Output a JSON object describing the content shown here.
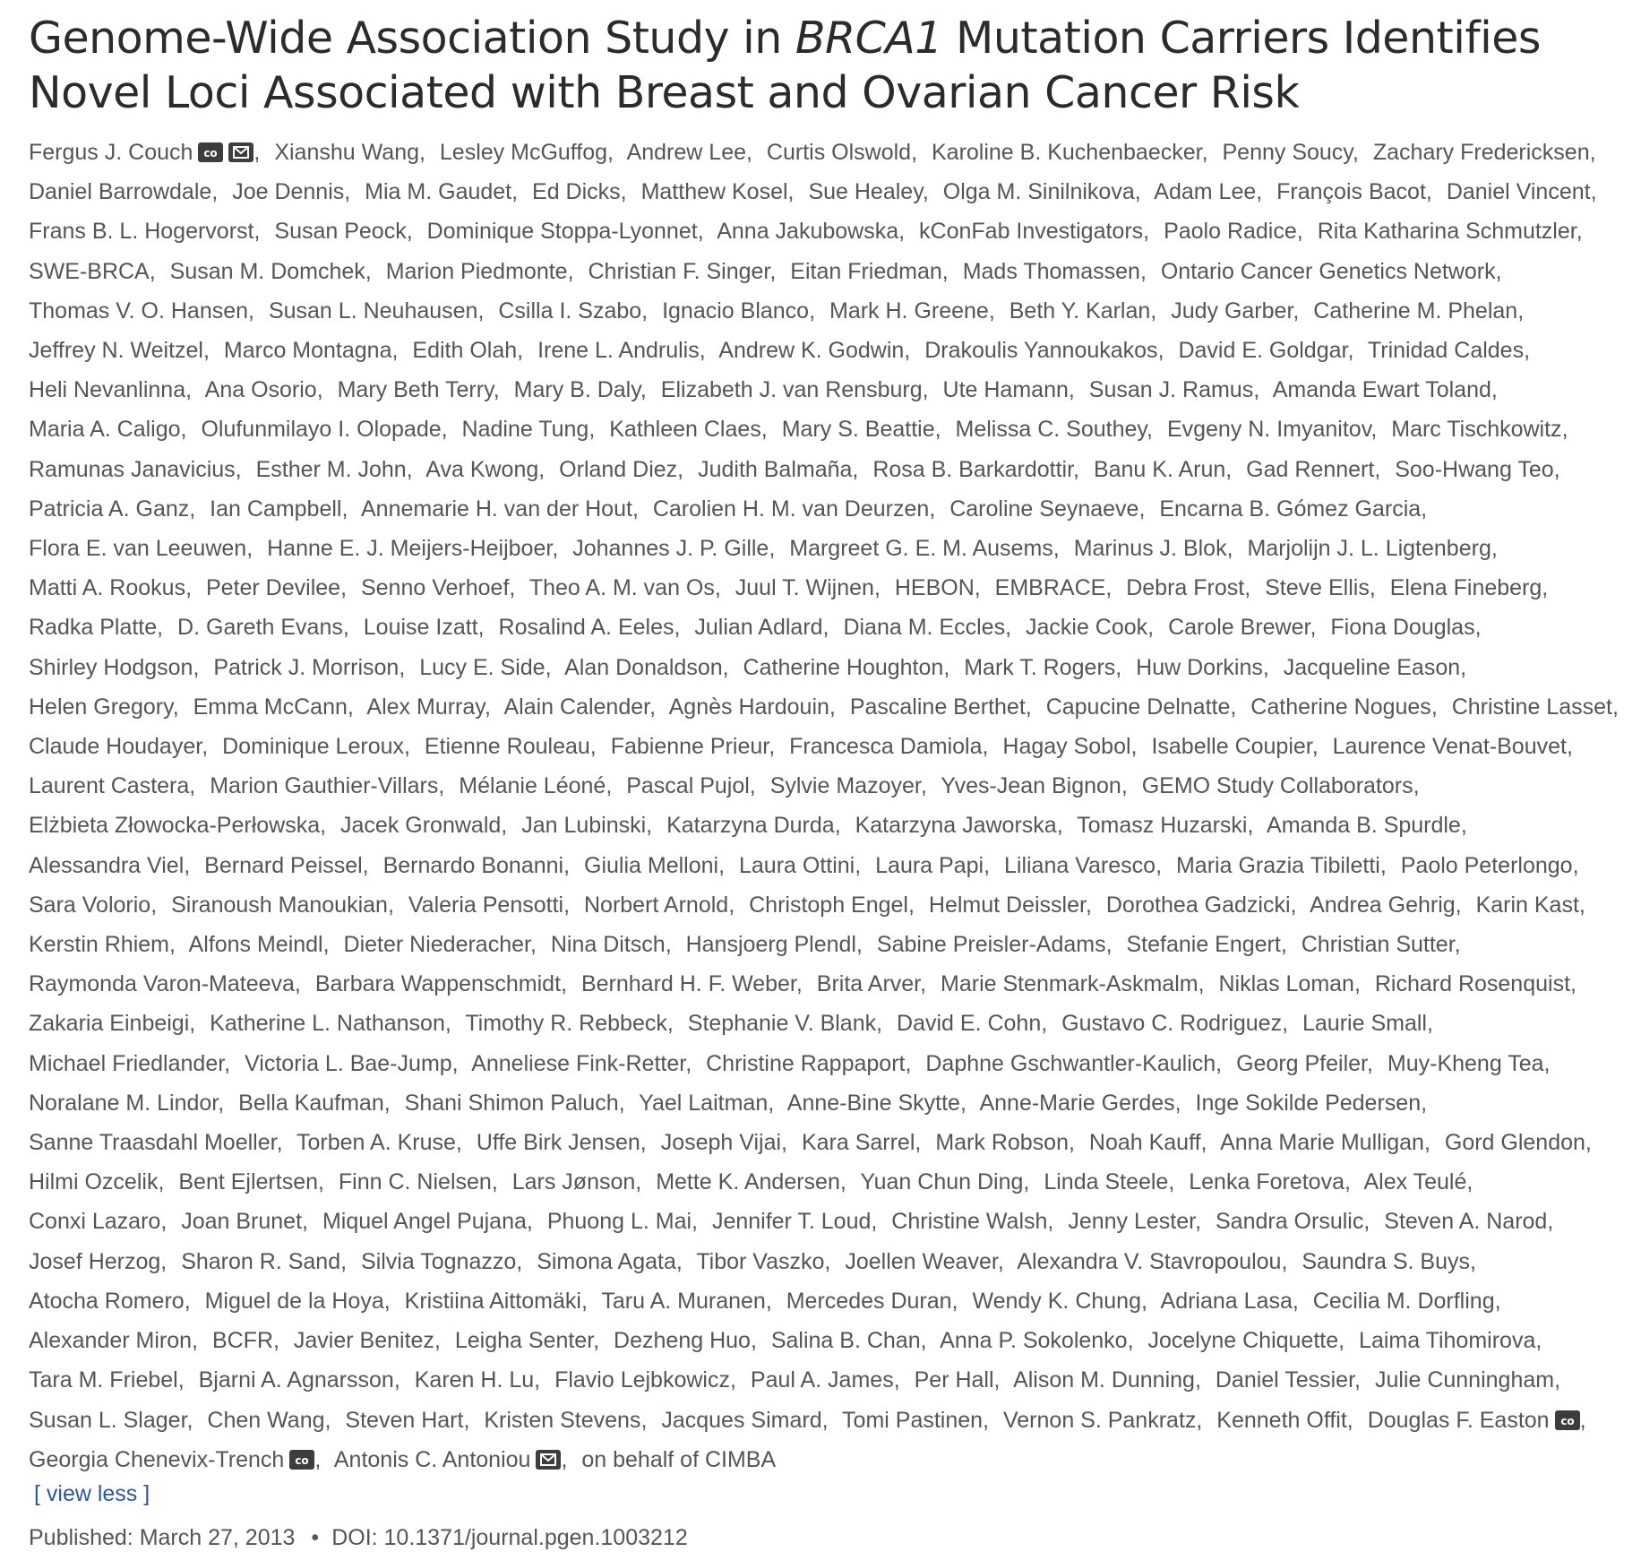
{
  "article": {
    "title_part1": "Genome-Wide Association Study in ",
    "title_italic": "BRCA1",
    "title_part2": " Mutation Carriers Identifies Novel Loci Associated with Breast and Ovarian Cancer Risk"
  },
  "authors": [
    {
      "name": "Fergus J. Couch",
      "icons": [
        "contributed-equally-icon",
        "email-icon"
      ]
    },
    {
      "name": "Xianshu Wang"
    },
    {
      "name": "Lesley McGuffog"
    },
    {
      "name": "Andrew Lee"
    },
    {
      "name": "Curtis Olswold"
    },
    {
      "name": "Karoline B. Kuchenbaecker"
    },
    {
      "name": "Penny Soucy"
    },
    {
      "name": "Zachary Fredericksen"
    },
    {
      "name": "Daniel Barrowdale"
    },
    {
      "name": "Joe Dennis"
    },
    {
      "name": "Mia M. Gaudet"
    },
    {
      "name": "Ed Dicks"
    },
    {
      "name": "Matthew Kosel"
    },
    {
      "name": "Sue Healey"
    },
    {
      "name": "Olga M. Sinilnikova"
    },
    {
      "name": "Adam Lee"
    },
    {
      "name": "François Bacot"
    },
    {
      "name": "Daniel Vincent"
    },
    {
      "name": "Frans B. L. Hogervorst"
    },
    {
      "name": "Susan Peock"
    },
    {
      "name": "Dominique Stoppa-Lyonnet"
    },
    {
      "name": "Anna Jakubowska"
    },
    {
      "name": "kConFab Investigators"
    },
    {
      "name": "Paolo Radice"
    },
    {
      "name": "Rita Katharina Schmutzler"
    },
    {
      "name": "SWE-BRCA"
    },
    {
      "name": "Susan M. Domchek"
    },
    {
      "name": "Marion Piedmonte"
    },
    {
      "name": "Christian F. Singer"
    },
    {
      "name": "Eitan Friedman"
    },
    {
      "name": "Mads Thomassen"
    },
    {
      "name": "Ontario Cancer Genetics Network"
    },
    {
      "name": "Thomas V. O. Hansen"
    },
    {
      "name": "Susan L. Neuhausen"
    },
    {
      "name": "Csilla I. Szabo"
    },
    {
      "name": "Ignacio Blanco"
    },
    {
      "name": "Mark H. Greene"
    },
    {
      "name": "Beth Y. Karlan"
    },
    {
      "name": "Judy Garber"
    },
    {
      "name": "Catherine M. Phelan"
    },
    {
      "name": "Jeffrey N. Weitzel"
    },
    {
      "name": "Marco Montagna"
    },
    {
      "name": "Edith Olah"
    },
    {
      "name": "Irene L. Andrulis"
    },
    {
      "name": "Andrew K. Godwin"
    },
    {
      "name": "Drakoulis Yannoukakos"
    },
    {
      "name": "David E. Goldgar"
    },
    {
      "name": "Trinidad Caldes"
    },
    {
      "name": "Heli Nevanlinna"
    },
    {
      "name": "Ana Osorio"
    },
    {
      "name": "Mary Beth Terry"
    },
    {
      "name": "Mary B. Daly"
    },
    {
      "name": "Elizabeth J. van Rensburg"
    },
    {
      "name": "Ute Hamann"
    },
    {
      "name": "Susan J. Ramus"
    },
    {
      "name": "Amanda Ewart Toland"
    },
    {
      "name": "Maria A. Caligo"
    },
    {
      "name": "Olufunmilayo I. Olopade"
    },
    {
      "name": "Nadine Tung"
    },
    {
      "name": "Kathleen Claes"
    },
    {
      "name": "Mary S. Beattie"
    },
    {
      "name": "Melissa C. Southey"
    },
    {
      "name": "Evgeny N. Imyanitov"
    },
    {
      "name": "Marc Tischkowitz"
    },
    {
      "name": "Ramunas Janavicius"
    },
    {
      "name": "Esther M. John"
    },
    {
      "name": "Ava Kwong"
    },
    {
      "name": "Orland Diez"
    },
    {
      "name": "Judith Balmaña"
    },
    {
      "name": "Rosa B. Barkardottir"
    },
    {
      "name": "Banu K. Arun"
    },
    {
      "name": "Gad Rennert"
    },
    {
      "name": "Soo-Hwang Teo"
    },
    {
      "name": "Patricia A. Ganz"
    },
    {
      "name": "Ian Campbell"
    },
    {
      "name": "Annemarie H. van der Hout"
    },
    {
      "name": "Carolien H. M. van Deurzen"
    },
    {
      "name": "Caroline Seynaeve"
    },
    {
      "name": "Encarna B. Gómez Garcia"
    },
    {
      "name": "Flora E. van Leeuwen"
    },
    {
      "name": "Hanne E. J. Meijers-Heijboer"
    },
    {
      "name": "Johannes J. P. Gille"
    },
    {
      "name": "Margreet G. E. M. Ausems"
    },
    {
      "name": "Marinus J. Blok"
    },
    {
      "name": "Marjolijn J. L. Ligtenberg"
    },
    {
      "name": "Matti A. Rookus"
    },
    {
      "name": "Peter Devilee"
    },
    {
      "name": "Senno Verhoef"
    },
    {
      "name": "Theo A. M. van Os"
    },
    {
      "name": "Juul T. Wijnen"
    },
    {
      "name": "HEBON"
    },
    {
      "name": "EMBRACE"
    },
    {
      "name": "Debra Frost"
    },
    {
      "name": "Steve Ellis"
    },
    {
      "name": "Elena Fineberg"
    },
    {
      "name": "Radka Platte"
    },
    {
      "name": "D. Gareth Evans"
    },
    {
      "name": "Louise Izatt"
    },
    {
      "name": "Rosalind A. Eeles"
    },
    {
      "name": "Julian Adlard"
    },
    {
      "name": "Diana M. Eccles"
    },
    {
      "name": "Jackie Cook"
    },
    {
      "name": "Carole Brewer"
    },
    {
      "name": "Fiona Douglas"
    },
    {
      "name": "Shirley Hodgson"
    },
    {
      "name": "Patrick J. Morrison"
    },
    {
      "name": "Lucy E. Side"
    },
    {
      "name": "Alan Donaldson"
    },
    {
      "name": "Catherine Houghton"
    },
    {
      "name": "Mark T. Rogers"
    },
    {
      "name": "Huw Dorkins"
    },
    {
      "name": "Jacqueline Eason"
    },
    {
      "name": "Helen Gregory"
    },
    {
      "name": "Emma McCann"
    },
    {
      "name": "Alex Murray"
    },
    {
      "name": "Alain Calender"
    },
    {
      "name": "Agnès Hardouin"
    },
    {
      "name": "Pascaline Berthet"
    },
    {
      "name": "Capucine Delnatte"
    },
    {
      "name": "Catherine Nogues"
    },
    {
      "name": "Christine Lasset"
    },
    {
      "name": "Claude Houdayer"
    },
    {
      "name": "Dominique Leroux"
    },
    {
      "name": "Etienne Rouleau"
    },
    {
      "name": "Fabienne Prieur"
    },
    {
      "name": "Francesca Damiola"
    },
    {
      "name": "Hagay Sobol"
    },
    {
      "name": "Isabelle Coupier"
    },
    {
      "name": "Laurence Venat-Bouvet"
    },
    {
      "name": "Laurent Castera"
    },
    {
      "name": "Marion Gauthier-Villars"
    },
    {
      "name": "Mélanie Léoné"
    },
    {
      "name": "Pascal Pujol"
    },
    {
      "name": "Sylvie Mazoyer"
    },
    {
      "name": "Yves-Jean Bignon"
    },
    {
      "name": "GEMO Study Collaborators"
    },
    {
      "name": "Elżbieta Złowocka-Perłowska"
    },
    {
      "name": "Jacek Gronwald"
    },
    {
      "name": "Jan Lubinski"
    },
    {
      "name": "Katarzyna Durda"
    },
    {
      "name": "Katarzyna Jaworska"
    },
    {
      "name": "Tomasz Huzarski"
    },
    {
      "name": "Amanda B. Spurdle"
    },
    {
      "name": "Alessandra Viel"
    },
    {
      "name": "Bernard Peissel"
    },
    {
      "name": "Bernardo Bonanni"
    },
    {
      "name": "Giulia Melloni"
    },
    {
      "name": "Laura Ottini"
    },
    {
      "name": "Laura Papi"
    },
    {
      "name": "Liliana Varesco"
    },
    {
      "name": "Maria Grazia Tibiletti"
    },
    {
      "name": "Paolo Peterlongo"
    },
    {
      "name": "Sara Volorio"
    },
    {
      "name": "Siranoush Manoukian"
    },
    {
      "name": "Valeria Pensotti"
    },
    {
      "name": "Norbert Arnold"
    },
    {
      "name": "Christoph Engel"
    },
    {
      "name": "Helmut Deissler"
    },
    {
      "name": "Dorothea Gadzicki"
    },
    {
      "name": "Andrea Gehrig"
    },
    {
      "name": "Karin Kast"
    },
    {
      "name": "Kerstin Rhiem"
    },
    {
      "name": "Alfons Meindl"
    },
    {
      "name": "Dieter Niederacher"
    },
    {
      "name": "Nina Ditsch"
    },
    {
      "name": "Hansjoerg Plendl"
    },
    {
      "name": "Sabine Preisler-Adams"
    },
    {
      "name": "Stefanie Engert"
    },
    {
      "name": "Christian Sutter"
    },
    {
      "name": "Raymonda Varon-Mateeva"
    },
    {
      "name": "Barbara Wappenschmidt"
    },
    {
      "name": "Bernhard H. F. Weber"
    },
    {
      "name": "Brita Arver"
    },
    {
      "name": "Marie Stenmark-Askmalm"
    },
    {
      "name": "Niklas Loman"
    },
    {
      "name": "Richard Rosenquist"
    },
    {
      "name": "Zakaria Einbeigi"
    },
    {
      "name": "Katherine L. Nathanson"
    },
    {
      "name": "Timothy R. Rebbeck"
    },
    {
      "name": "Stephanie V. Blank"
    },
    {
      "name": "David E. Cohn"
    },
    {
      "name": "Gustavo C. Rodriguez"
    },
    {
      "name": "Laurie Small"
    },
    {
      "name": "Michael Friedlander"
    },
    {
      "name": "Victoria L. Bae-Jump"
    },
    {
      "name": "Anneliese Fink-Retter"
    },
    {
      "name": "Christine Rappaport"
    },
    {
      "name": "Daphne Gschwantler-Kaulich"
    },
    {
      "name": "Georg Pfeiler"
    },
    {
      "name": "Muy-Kheng Tea"
    },
    {
      "name": "Noralane M. Lindor"
    },
    {
      "name": "Bella Kaufman"
    },
    {
      "name": "Shani Shimon Paluch"
    },
    {
      "name": "Yael Laitman"
    },
    {
      "name": "Anne-Bine Skytte"
    },
    {
      "name": "Anne-Marie Gerdes"
    },
    {
      "name": "Inge Sokilde Pedersen"
    },
    {
      "name": "Sanne Traasdahl Moeller"
    },
    {
      "name": "Torben A. Kruse"
    },
    {
      "name": "Uffe Birk Jensen"
    },
    {
      "name": "Joseph Vijai"
    },
    {
      "name": "Kara Sarrel"
    },
    {
      "name": "Mark Robson"
    },
    {
      "name": "Noah Kauff"
    },
    {
      "name": "Anna Marie Mulligan"
    },
    {
      "name": "Gord Glendon"
    },
    {
      "name": "Hilmi Ozcelik"
    },
    {
      "name": "Bent Ejlertsen"
    },
    {
      "name": "Finn C. Nielsen"
    },
    {
      "name": "Lars Jønson"
    },
    {
      "name": "Mette K. Andersen"
    },
    {
      "name": "Yuan Chun Ding"
    },
    {
      "name": "Linda Steele"
    },
    {
      "name": "Lenka Foretova"
    },
    {
      "name": "Alex Teulé"
    },
    {
      "name": "Conxi Lazaro"
    },
    {
      "name": "Joan Brunet"
    },
    {
      "name": "Miquel Angel Pujana"
    },
    {
      "name": "Phuong L. Mai"
    },
    {
      "name": "Jennifer T. Loud"
    },
    {
      "name": "Christine Walsh"
    },
    {
      "name": "Jenny Lester"
    },
    {
      "name": "Sandra Orsulic"
    },
    {
      "name": "Steven A. Narod"
    },
    {
      "name": "Josef Herzog"
    },
    {
      "name": "Sharon R. Sand"
    },
    {
      "name": "Silvia Tognazzo"
    },
    {
      "name": "Simona Agata"
    },
    {
      "name": "Tibor Vaszko"
    },
    {
      "name": "Joellen Weaver"
    },
    {
      "name": "Alexandra V. Stavropoulou"
    },
    {
      "name": "Saundra S. Buys"
    },
    {
      "name": "Atocha Romero"
    },
    {
      "name": "Miguel de la Hoya"
    },
    {
      "name": "Kristiina Aittomäki"
    },
    {
      "name": "Taru A. Muranen"
    },
    {
      "name": "Mercedes Duran"
    },
    {
      "name": "Wendy K. Chung"
    },
    {
      "name": "Adriana Lasa"
    },
    {
      "name": "Cecilia M. Dorfling"
    },
    {
      "name": "Alexander Miron"
    },
    {
      "name": "BCFR"
    },
    {
      "name": "Javier Benitez"
    },
    {
      "name": "Leigha Senter"
    },
    {
      "name": "Dezheng Huo"
    },
    {
      "name": "Salina B. Chan"
    },
    {
      "name": "Anna P. Sokolenko"
    },
    {
      "name": "Jocelyne Chiquette"
    },
    {
      "name": "Laima Tihomirova"
    },
    {
      "name": "Tara M. Friebel"
    },
    {
      "name": "Bjarni A. Agnarsson"
    },
    {
      "name": "Karen H. Lu"
    },
    {
      "name": "Flavio Lejbkowicz"
    },
    {
      "name": "Paul A. James"
    },
    {
      "name": "Per Hall"
    },
    {
      "name": "Alison M. Dunning"
    },
    {
      "name": "Daniel Tessier"
    },
    {
      "name": "Julie Cunningham"
    },
    {
      "name": "Susan L. Slager"
    },
    {
      "name": "Chen Wang"
    },
    {
      "name": "Steven Hart"
    },
    {
      "name": "Kristen Stevens"
    },
    {
      "name": "Jacques Simard"
    },
    {
      "name": "Tomi Pastinen"
    },
    {
      "name": "Vernon S. Pankratz"
    },
    {
      "name": "Kenneth Offit"
    },
    {
      "name": "Douglas F. Easton",
      "icons": [
        "contributed-equally-icon"
      ]
    },
    {
      "name": "Georgia Chenevix-Trench",
      "icons": [
        "contributed-equally-icon"
      ]
    },
    {
      "name": "Antonis C. Antoniou",
      "icons": [
        "email-icon"
      ]
    },
    {
      "name": "on behalf of CIMBA",
      "last": true
    }
  ],
  "view_less_label": "[ view less ]",
  "published_label": "Published: March 27, 2013",
  "bullet": "•",
  "doi_label": "DOI: 10.1371/journal.pgen.1003212"
}
